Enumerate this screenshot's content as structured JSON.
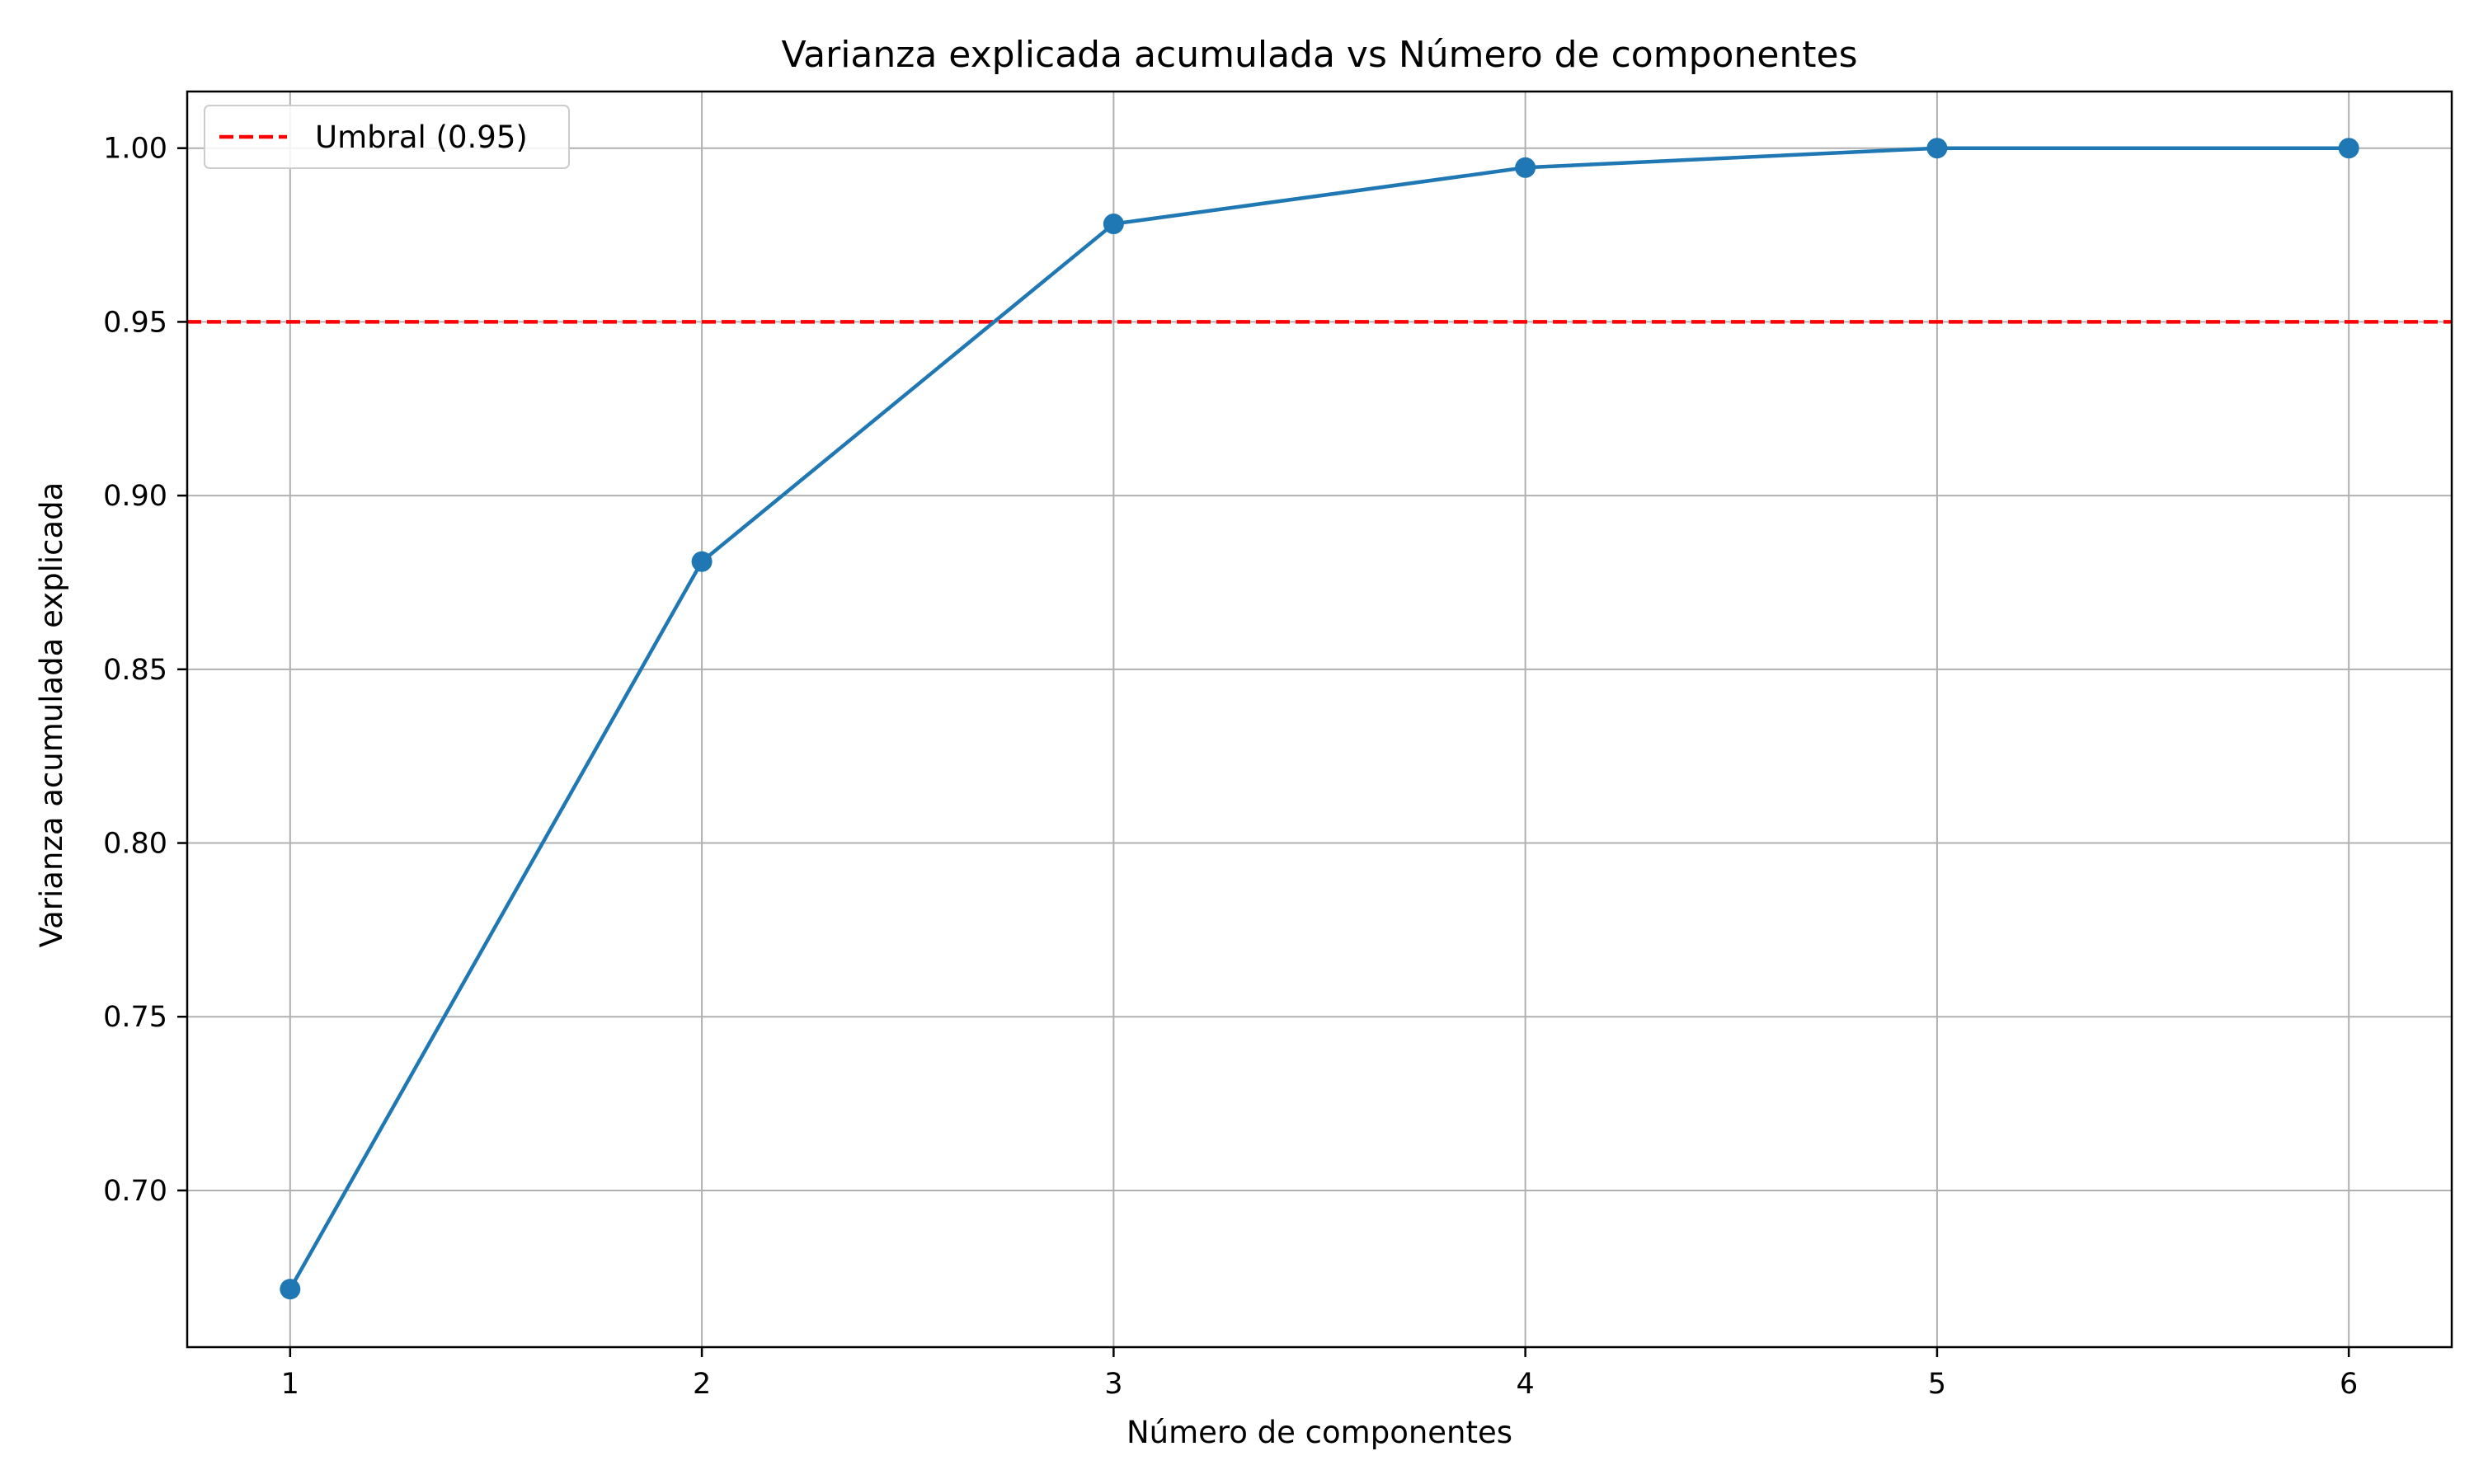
{
  "chart_data": {
    "type": "line",
    "title": "Varianza explicada acumulada vs Número de componentes",
    "xlabel": "Número de componentes",
    "ylabel": "Varianza acumulada explicada",
    "x": [
      1,
      2,
      3,
      4,
      5,
      6
    ],
    "series": [
      {
        "values": [
          0.6716,
          0.881,
          0.9782,
          0.9944,
          1.0,
          1.0
        ],
        "color": "#1f77b4",
        "marker": "circle"
      }
    ],
    "threshold": {
      "label": "Umbral (0.95)",
      "value": 0.95,
      "color": "#ff0000",
      "style": "dashed"
    },
    "xlim": [
      0.75,
      6.25
    ],
    "ylim": [
      0.6549,
      1.0163
    ],
    "xticks": [
      "1",
      "2",
      "3",
      "4",
      "5",
      "6"
    ],
    "yticks": [
      "0.70",
      "0.75",
      "0.80",
      "0.85",
      "0.90",
      "0.95",
      "1.00"
    ],
    "grid": true,
    "legend_position": "top-left"
  }
}
